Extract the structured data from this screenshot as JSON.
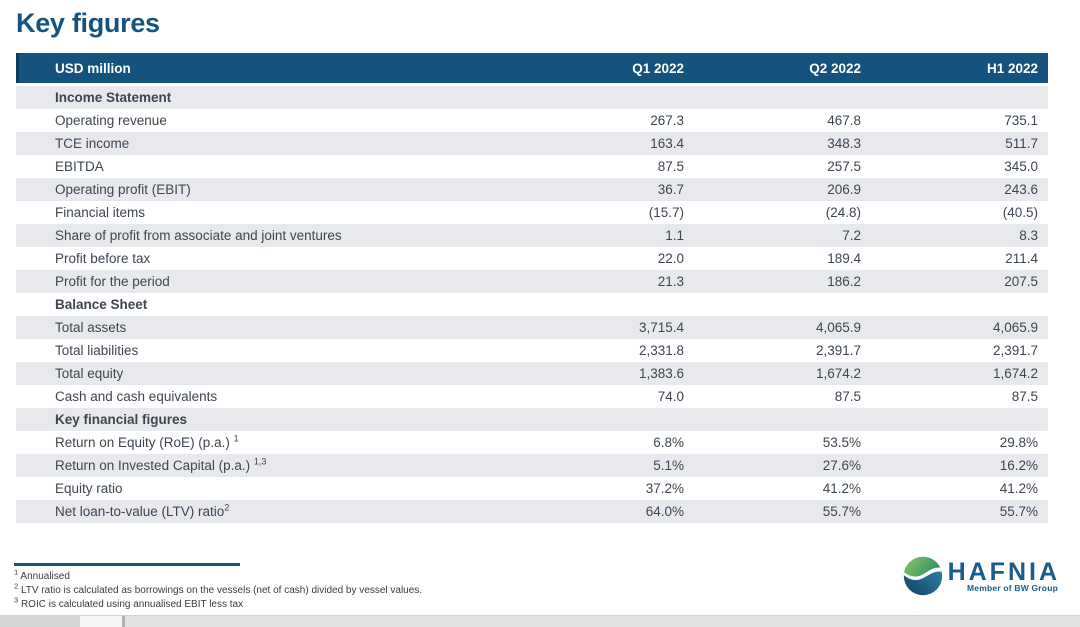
{
  "title": "Key figures",
  "table": {
    "unit_label": "USD million",
    "columns": [
      "Q1 2022",
      "Q2 2022",
      "H1 2022"
    ],
    "rows": [
      {
        "label": "Income Statement",
        "section": true
      },
      {
        "label": "Operating revenue",
        "values": [
          "267.3",
          "467.8",
          "735.1"
        ]
      },
      {
        "label": "TCE income",
        "values": [
          "163.4",
          "348.3",
          "511.7"
        ]
      },
      {
        "label": "EBITDA",
        "values": [
          "87.5",
          "257.5",
          "345.0"
        ]
      },
      {
        "label": "Operating profit (EBIT)",
        "values": [
          "36.7",
          "206.9",
          "243.6"
        ]
      },
      {
        "label": "Financial items",
        "values": [
          "(15.7)",
          "(24.8)",
          "(40.5)"
        ]
      },
      {
        "label": "Share of profit from associate and joint ventures",
        "values": [
          "1.1",
          "7.2",
          "8.3"
        ]
      },
      {
        "label": "Profit before tax",
        "values": [
          "22.0",
          "189.4",
          "211.4"
        ]
      },
      {
        "label": "Profit for the period",
        "values": [
          "21.3",
          "186.2",
          "207.5"
        ]
      },
      {
        "label": "Balance Sheet",
        "section": true
      },
      {
        "label": "Total assets",
        "values": [
          "3,715.4",
          "4,065.9",
          "4,065.9"
        ]
      },
      {
        "label": "Total liabilities",
        "values": [
          "2,331.8",
          "2,391.7",
          "2,391.7"
        ]
      },
      {
        "label": "Total equity",
        "values": [
          "1,383.6",
          "1,674.2",
          "1,674.2"
        ]
      },
      {
        "label": "Cash and cash equivalents",
        "values": [
          "74.0",
          "87.5",
          "87.5"
        ]
      },
      {
        "label": "Key financial figures",
        "section": true
      },
      {
        "label": "Return on Equity (RoE) (p.a.)",
        "sup": "1",
        "sup_gap": true,
        "values": [
          "6.8%",
          "53.5%",
          "29.8%"
        ]
      },
      {
        "label": "Return on Invested Capital (p.a.)",
        "sup": "1,3",
        "sup_gap": true,
        "values": [
          "5.1%",
          "27.6%",
          "16.2%"
        ]
      },
      {
        "label": "Equity ratio",
        "values": [
          "37.2%",
          "41.2%",
          "41.2%"
        ]
      },
      {
        "label": "Net loan-to-value (LTV) ratio",
        "sup": "2",
        "sup_gap": false,
        "values": [
          "64.0%",
          "55.7%",
          "55.7%"
        ]
      }
    ]
  },
  "footnotes": [
    {
      "sup": "1",
      "text": "Annualised"
    },
    {
      "sup": "2",
      "text": "LTV ratio is calculated as borrowings on the vessels (net of cash) divided by vessel values."
    },
    {
      "sup": "3",
      "text": "ROIC is calculated using annualised EBIT less tax"
    }
  ],
  "logo": {
    "name": "HAFNIA",
    "tagline": "Member of BW Group"
  },
  "colors": {
    "header_navy": "#15527E",
    "header_navy_edge": "#0C3B5C",
    "title_blue": "#15537F",
    "row_gray": "#E8E9EC",
    "row_text": "#3D4650",
    "logo_blue": "#1B5C8D",
    "logo_green": "#5FB36A",
    "logo_teal": "#2F8FB0"
  }
}
